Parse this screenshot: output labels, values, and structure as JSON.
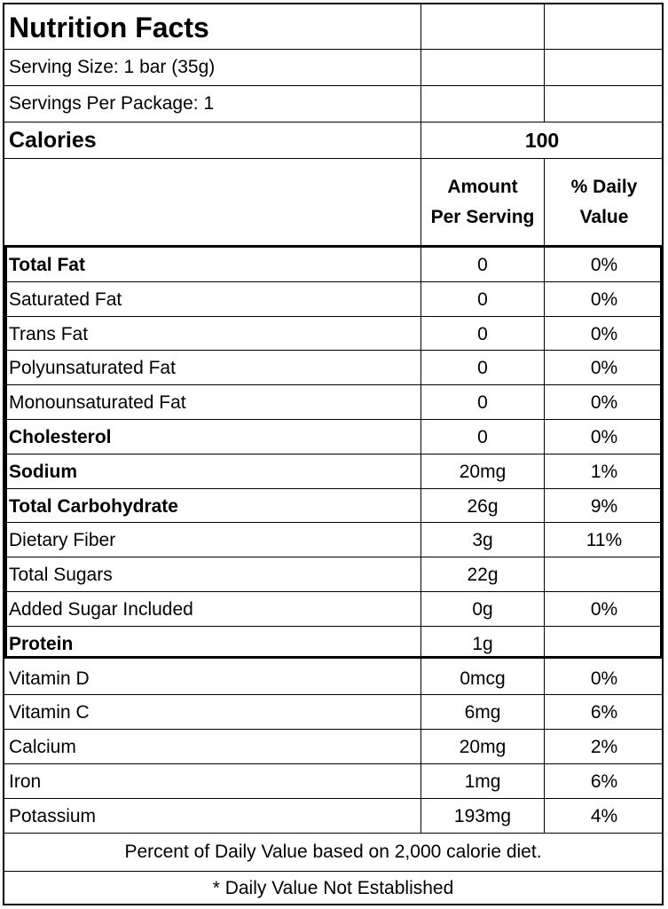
{
  "title": "Nutrition Facts",
  "serving_size": "Serving Size: 1 bar (35g)",
  "servings_per_package": "Servings Per Package: 1",
  "calories": {
    "label": "Calories",
    "value": "100"
  },
  "column_headers": {
    "amount_line1": "Amount",
    "amount_line2": "Per Serving",
    "dv_line1": "% Daily",
    "dv_line2": "Value"
  },
  "nutrients": [
    {
      "name": "Total Fat",
      "amount": "0",
      "dv": "0%",
      "bold": true
    },
    {
      "name": "Saturated Fat",
      "amount": "0",
      "dv": "0%",
      "bold": false
    },
    {
      "name": "Trans Fat",
      "amount": "0",
      "dv": "0%",
      "bold": false
    },
    {
      "name": "Polyunsaturated Fat",
      "amount": "0",
      "dv": "0%",
      "bold": false
    },
    {
      "name": "Monounsaturated Fat",
      "amount": "0",
      "dv": "0%",
      "bold": false
    },
    {
      "name": "Cholesterol",
      "amount": "0",
      "dv": "0%",
      "bold": true
    },
    {
      "name": "Sodium",
      "amount": "20mg",
      "dv": "1%",
      "bold": true
    },
    {
      "name": "Total Carbohydrate",
      "amount": "26g",
      "dv": "9%",
      "bold": true
    },
    {
      "name": "Dietary Fiber",
      "amount": "3g",
      "dv": "11%",
      "bold": false
    },
    {
      "name": "Total Sugars",
      "amount": "22g",
      "dv": "",
      "bold": false
    },
    {
      "name": "Added Sugar Included",
      "amount": "0g",
      "dv": "0%",
      "bold": false
    },
    {
      "name": "Protein",
      "amount": "1g",
      "dv": "",
      "bold": true
    }
  ],
  "vitamins": [
    {
      "name": "Vitamin D",
      "amount": "0mcg",
      "dv": "0%"
    },
    {
      "name": "Vitamin C",
      "amount": "6mg",
      "dv": "6%"
    },
    {
      "name": "Calcium",
      "amount": "20mg",
      "dv": "2%"
    },
    {
      "name": "Iron",
      "amount": "1mg",
      "dv": "6%"
    },
    {
      "name": "Potassium",
      "amount": "193mg",
      "dv": "4%"
    }
  ],
  "footnotes": [
    "Percent of Daily Value based on 2,000 calorie diet.",
    "* Daily Value Not Established"
  ]
}
